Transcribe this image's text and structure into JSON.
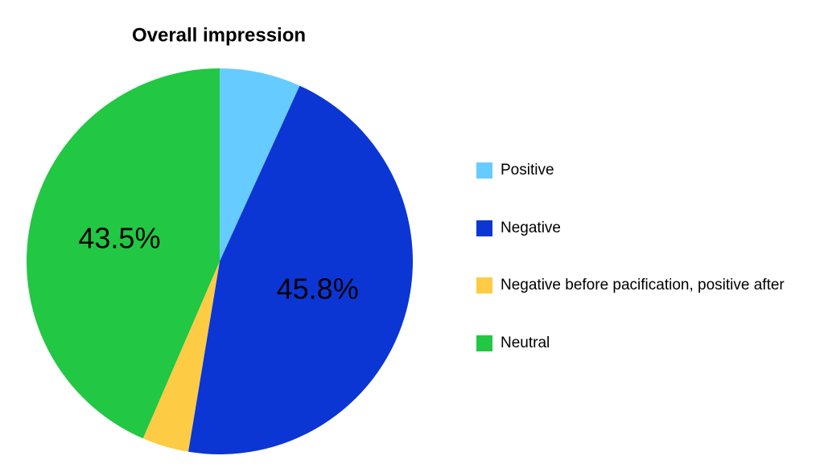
{
  "chart_data": {
    "type": "pie",
    "title": "Overall impression",
    "categories": [
      "Positive",
      "Negative",
      "Negative before pacification, positive after",
      "Neutral"
    ],
    "values": [
      6.8,
      45.8,
      3.9,
      43.5
    ],
    "value_labels": [
      null,
      "45.8%",
      null,
      "43.5%"
    ],
    "colors": [
      "#66ccff",
      "#0b36d4",
      "#fecb45",
      "#22c744"
    ],
    "legend": "right"
  }
}
